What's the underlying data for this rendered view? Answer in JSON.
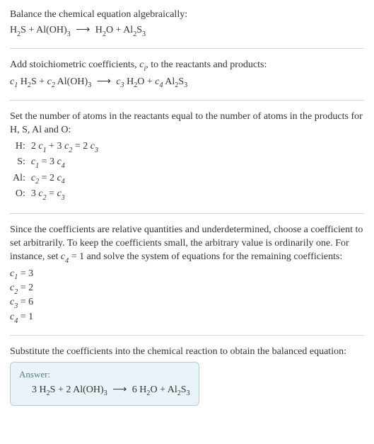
{
  "sec1": {
    "intro": "Balance the chemical equation algebraically:"
  },
  "sec2": {
    "intro_a": "Add stoichiometric coefficients, ",
    "intro_b": ", to the reactants and products:"
  },
  "sec3": {
    "line1": "Set the number of atoms in the reactants equal to the number of atoms in the products for H, S, Al and O:",
    "rows": {
      "h_label": "H:",
      "s_label": "S:",
      "al_label": "Al:",
      "o_label": "O:"
    }
  },
  "sec4": {
    "para_a": "Since the coefficients are relative quantities and underdetermined, choose a coefficient to set arbitrarily. To keep the coefficients small, the arbitrary value is ordinarily one. For instance, set ",
    "para_b": " and solve the system of equations for the remaining coefficients:"
  },
  "sec5": {
    "line": "Substitute the coefficients into the chemical reaction to obtain the balanced equation:",
    "answer_label": "Answer:"
  },
  "chem": {
    "H2S": "H",
    "H2S_2": "2",
    "H2S_S": "S",
    "AlOH3_Al": "Al(OH)",
    "AlOH3_3": "3",
    "H2O_H": "H",
    "H2O_2": "2",
    "H2O_O": "O",
    "Al2S3_Al": "Al",
    "Al2S3_2": "2",
    "Al2S3_S": "S",
    "Al2S3_3": "3",
    "arrow": "⟶",
    "plus": " + "
  },
  "coef": {
    "c": "c",
    "i": "i",
    "c1": "1",
    "c2": "2",
    "c3": "3",
    "c4": "4",
    "eq_h_rhs_a": "2 ",
    "eq_h_mid": " + 3 ",
    "eq_h_rhs_b": " = 2 ",
    "eq_s": " = 3 ",
    "eq_al": " = 2 ",
    "eq_o_lhs": "3 ",
    "eq_o_mid": " = ",
    "set_c4": " = 1",
    "r1": " = 3",
    "r2": " = 2",
    "r3": " = 6",
    "r4": " = 1",
    "three": "3 ",
    "two": "2 ",
    "six": "6 "
  }
}
